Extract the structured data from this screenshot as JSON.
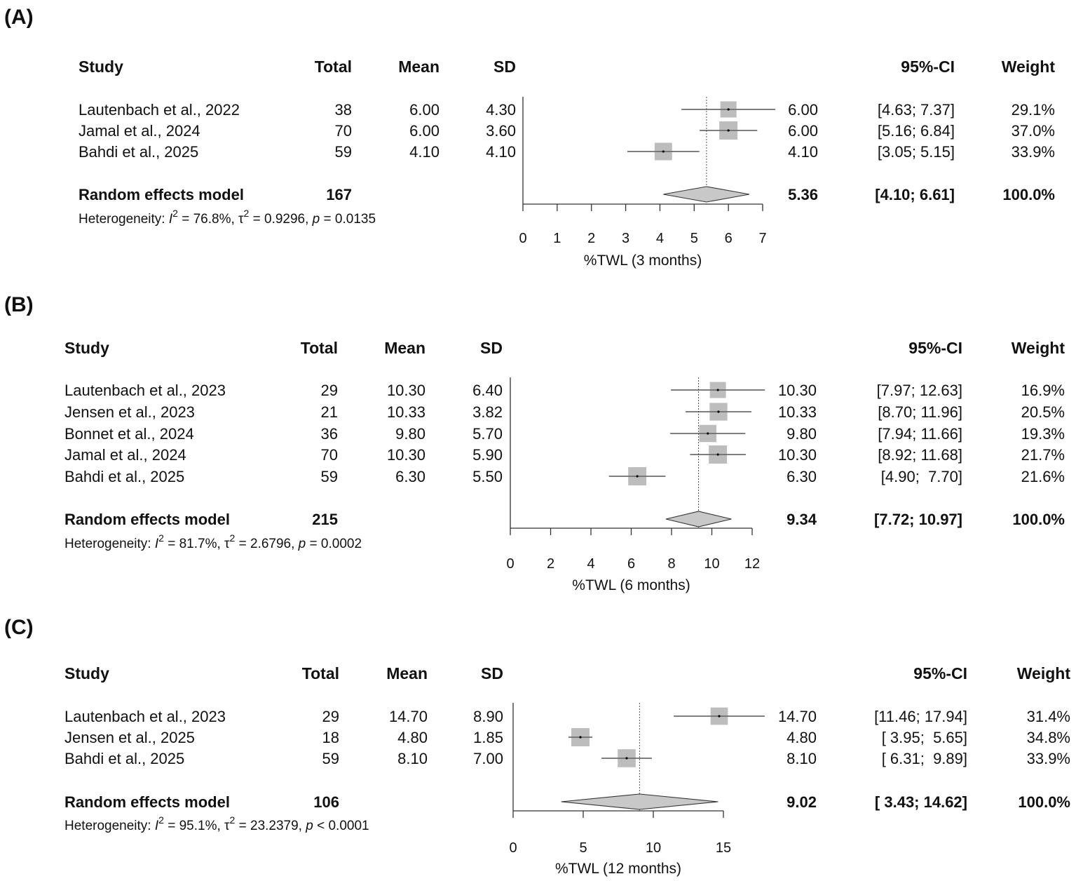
{
  "panels": [
    {
      "id": "a",
      "label": "(A)",
      "headers": {
        "study": "Study",
        "total": "Total",
        "mean": "Mean",
        "sd": "SD",
        "ci": "95%-CI",
        "weight": "Weight"
      },
      "studies": [
        {
          "name": "Lautenbach et al., 2022",
          "total": "38",
          "mean": "6.00",
          "sd": "4.30",
          "est": "6.00",
          "ci": "[4.63; 7.37]",
          "weight": "29.1%"
        },
        {
          "name": "Jamal et al., 2024",
          "total": "70",
          "mean": "6.00",
          "sd": "3.60",
          "est": "6.00",
          "ci": "[5.16; 6.84]",
          "weight": "37.0%"
        },
        {
          "name": "Bahdi et al., 2025",
          "total": "59",
          "mean": "4.10",
          "sd": "4.10",
          "est": "4.10",
          "ci": "[3.05; 5.15]",
          "weight": "33.9%"
        }
      ],
      "pooled": {
        "name": "Random effects model",
        "total": "167",
        "est": "5.36",
        "ci": "[4.10; 6.61]",
        "weight": "100.0%"
      },
      "heterogeneity": {
        "prefix": "Heterogeneity: ",
        "i2_sym": "I",
        "i2_sup": "2",
        "i2_val": " = 76.8%, ",
        "tau_sym": "τ",
        "tau_sup": "2",
        "tau_val": " = 0.9296, ",
        "p_sym": "p",
        "p_val": " = 0.0135"
      },
      "axis_label": "%TWL (3 months)",
      "ticks": [
        "0",
        "1",
        "2",
        "3",
        "4",
        "5",
        "6",
        "7"
      ]
    },
    {
      "id": "b",
      "label": "(B)",
      "headers": {
        "study": "Study",
        "total": "Total",
        "mean": "Mean",
        "sd": "SD",
        "ci": "95%-CI",
        "weight": "Weight"
      },
      "studies": [
        {
          "name": "Lautenbach et al., 2023",
          "total": "29",
          "mean": "10.30",
          "sd": "6.40",
          "est": "10.30",
          "ci": "[7.97; 12.63]",
          "weight": "16.9%"
        },
        {
          "name": "Jensen et al., 2023",
          "total": "21",
          "mean": "10.33",
          "sd": "3.82",
          "est": "10.33",
          "ci": "[8.70; 11.96]",
          "weight": "20.5%"
        },
        {
          "name": "Bonnet et al., 2024",
          "total": "36",
          "mean": "9.80",
          "sd": "5.70",
          "est": "9.80",
          "ci": "[7.94; 11.66]",
          "weight": "19.3%"
        },
        {
          "name": "Jamal et al., 2024",
          "total": "70",
          "mean": "10.30",
          "sd": "5.90",
          "est": "10.30",
          "ci": "[8.92; 11.68]",
          "weight": "21.7%"
        },
        {
          "name": "Bahdi et al., 2025",
          "total": "59",
          "mean": "6.30",
          "sd": "5.50",
          "est": "6.30",
          "ci": "[4.90;  7.70]",
          "weight": "21.6%"
        }
      ],
      "pooled": {
        "name": "Random effects model",
        "total": "215",
        "est": "9.34",
        "ci": "[7.72; 10.97]",
        "weight": "100.0%"
      },
      "heterogeneity": {
        "prefix": "Heterogeneity: ",
        "i2_sym": "I",
        "i2_sup": "2",
        "i2_val": " = 81.7%, ",
        "tau_sym": "τ",
        "tau_sup": "2",
        "tau_val": " = 2.6796, ",
        "p_sym": "p",
        "p_val": " = 0.0002"
      },
      "axis_label": "%TWL (6 months)",
      "ticks": [
        "0",
        "2",
        "4",
        "6",
        "8",
        "10",
        "12"
      ]
    },
    {
      "id": "c",
      "label": "(C)",
      "headers": {
        "study": "Study",
        "total": "Total",
        "mean": "Mean",
        "sd": "SD",
        "ci": "95%-CI",
        "weight": "Weight"
      },
      "studies": [
        {
          "name": "Lautenbach et al., 2023",
          "total": "29",
          "mean": "14.70",
          "sd": "8.90",
          "est": "14.70",
          "ci": "[11.46; 17.94]",
          "weight": "31.4%"
        },
        {
          "name": "Jensen et al., 2025",
          "total": "18",
          "mean": "4.80",
          "sd": "1.85",
          "est": "4.80",
          "ci": "[ 3.95;  5.65]",
          "weight": "34.8%"
        },
        {
          "name": "Bahdi et al., 2025",
          "total": "59",
          "mean": "8.10",
          "sd": "7.00",
          "est": "8.10",
          "ci": "[ 6.31;  9.89]",
          "weight": "33.9%"
        }
      ],
      "pooled": {
        "name": "Random effects model",
        "total": "106",
        "est": "9.02",
        "ci": "[ 3.43; 14.62]",
        "weight": "100.0%"
      },
      "heterogeneity": {
        "prefix": "Heterogeneity: ",
        "i2_sym": "I",
        "i2_sup": "2",
        "i2_val": " = 95.1%, ",
        "tau_sym": "τ",
        "tau_sup": "2",
        "tau_val": " = 23.2379, ",
        "p_sym": "p",
        "p_val": " < 0.0001"
      },
      "axis_label": "%TWL (12 months)",
      "ticks": [
        "0",
        "5",
        "10",
        "15"
      ]
    }
  ],
  "chart_data": [
    {
      "type": "forest",
      "xlabel": "%TWL (3 months)",
      "xlim": [
        0,
        7
      ],
      "reference_line": 5.36,
      "studies": [
        {
          "name": "Lautenbach et al., 2022",
          "total": 38,
          "mean": 6.0,
          "sd": 4.3,
          "ci": [
            4.63,
            7.37
          ],
          "weight": 29.1
        },
        {
          "name": "Jamal et al., 2024",
          "total": 70,
          "mean": 6.0,
          "sd": 3.6,
          "ci": [
            5.16,
            6.84
          ],
          "weight": 37.0
        },
        {
          "name": "Bahdi et al., 2025",
          "total": 59,
          "mean": 4.1,
          "sd": 4.1,
          "ci": [
            3.05,
            5.15
          ],
          "weight": 33.9
        }
      ],
      "pooled": {
        "name": "Random effects model",
        "total": 167,
        "est": 5.36,
        "ci": [
          4.1,
          6.61
        ],
        "weight": 100.0
      },
      "heterogeneity": {
        "I2": 76.8,
        "tau2": 0.9296,
        "p": 0.0135
      }
    },
    {
      "type": "forest",
      "xlabel": "%TWL (6 months)",
      "xlim": [
        0,
        12
      ],
      "reference_line": 9.34,
      "studies": [
        {
          "name": "Lautenbach et al., 2023",
          "total": 29,
          "mean": 10.3,
          "sd": 6.4,
          "ci": [
            7.97,
            12.63
          ],
          "weight": 16.9
        },
        {
          "name": "Jensen et al., 2023",
          "total": 21,
          "mean": 10.33,
          "sd": 3.82,
          "ci": [
            8.7,
            11.96
          ],
          "weight": 20.5
        },
        {
          "name": "Bonnet et al., 2024",
          "total": 36,
          "mean": 9.8,
          "sd": 5.7,
          "ci": [
            7.94,
            11.66
          ],
          "weight": 19.3
        },
        {
          "name": "Jamal et al., 2024",
          "total": 70,
          "mean": 10.3,
          "sd": 5.9,
          "ci": [
            8.92,
            11.68
          ],
          "weight": 21.7
        },
        {
          "name": "Bahdi et al., 2025",
          "total": 59,
          "mean": 6.3,
          "sd": 5.5,
          "ci": [
            4.9,
            7.7
          ],
          "weight": 21.6
        }
      ],
      "pooled": {
        "name": "Random effects model",
        "total": 215,
        "est": 9.34,
        "ci": [
          7.72,
          10.97
        ],
        "weight": 100.0
      },
      "heterogeneity": {
        "I2": 81.7,
        "tau2": 2.6796,
        "p": 0.0002
      }
    },
    {
      "type": "forest",
      "xlabel": "%TWL (12 months)",
      "xlim": [
        0,
        15
      ],
      "reference_line": 9.02,
      "studies": [
        {
          "name": "Lautenbach et al., 2023",
          "total": 29,
          "mean": 14.7,
          "sd": 8.9,
          "ci": [
            11.46,
            17.94
          ],
          "weight": 31.4
        },
        {
          "name": "Jensen et al., 2025",
          "total": 18,
          "mean": 4.8,
          "sd": 1.85,
          "ci": [
            3.95,
            5.65
          ],
          "weight": 34.8
        },
        {
          "name": "Bahdi et al., 2025",
          "total": 59,
          "mean": 8.1,
          "sd": 7.0,
          "ci": [
            6.31,
            9.89
          ],
          "weight": 33.9
        }
      ],
      "pooled": {
        "name": "Random effects model",
        "total": 106,
        "est": 9.02,
        "ci": [
          3.43,
          14.62
        ],
        "weight": 100.0
      },
      "heterogeneity": {
        "I2": 95.1,
        "tau2": 23.2379,
        "p": "< 0.0001"
      }
    }
  ]
}
